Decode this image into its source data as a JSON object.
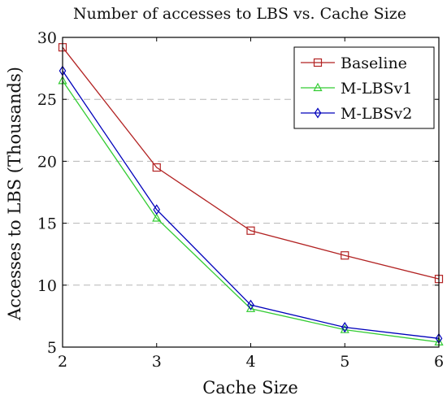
{
  "chart_data": {
    "type": "line",
    "title": "Number of accesses to LBS vs. Cache Size",
    "xlabel": "Cache Size",
    "ylabel": "Accesses to LBS (Thousands)",
    "x": [
      2,
      3,
      4,
      5,
      6
    ],
    "xlim": [
      2,
      6
    ],
    "ylim": [
      5,
      30
    ],
    "xticks": [
      "2",
      "3",
      "4",
      "5",
      "6"
    ],
    "yticks": [
      "5",
      "10",
      "15",
      "20",
      "25",
      "30"
    ],
    "grid": "horizontal dashed",
    "legend_position": "top-right",
    "series": [
      {
        "name": "Baseline",
        "values": [
          29.2,
          19.5,
          14.4,
          12.4,
          10.5
        ],
        "color": "#b22222",
        "marker": "square"
      },
      {
        "name": "M-LBSv1",
        "values": [
          26.5,
          15.4,
          8.1,
          6.4,
          5.4
        ],
        "color": "#33cc33",
        "marker": "triangle"
      },
      {
        "name": "M-LBSv2",
        "values": [
          27.3,
          16.1,
          8.4,
          6.6,
          5.7
        ],
        "color": "#0000bb",
        "marker": "diamond"
      }
    ]
  }
}
